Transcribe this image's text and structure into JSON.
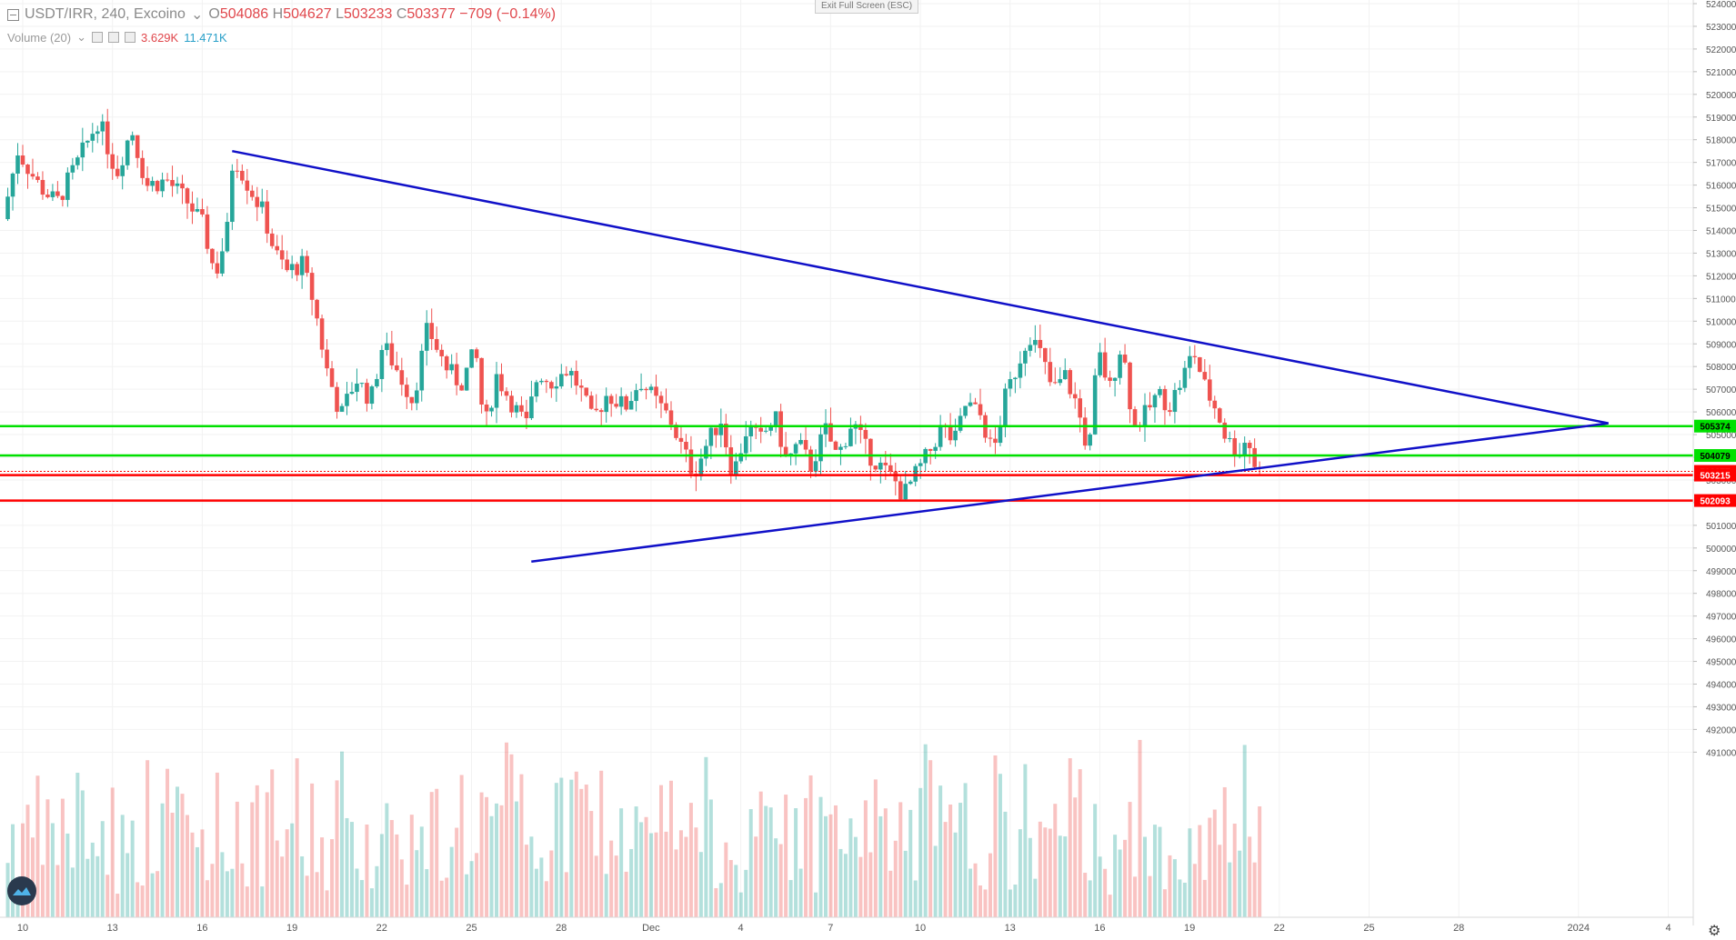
{
  "legend": {
    "symbol": "USDT/IRR, 240, Excoino",
    "open_key": "O",
    "open": "504086",
    "high_key": "H",
    "high": "504627",
    "low_key": "L",
    "low": "503233",
    "close_key": "C",
    "close": "503377",
    "change": "−709 (−0.14%)"
  },
  "volume_legend": {
    "name": "Volume (20)",
    "value1": "3.629K",
    "value2": "11.471K"
  },
  "exit_fullscreen": "Exit Full Screen (ESC)",
  "colors": {
    "up": "#26a69a",
    "down": "#ef5350",
    "trendline": "#1010c8",
    "support": "#00e000",
    "resistance": "#ff0000"
  },
  "chart_data": {
    "type": "candlestick",
    "y_axis": {
      "min": 491000,
      "max": 524000,
      "step": 1000,
      "labels": [
        "491000",
        "492000",
        "493000",
        "494000",
        "495000",
        "496000",
        "497000",
        "498000",
        "499000",
        "500000",
        "501000",
        "502000",
        "503000",
        "504000",
        "505000",
        "506000",
        "507000",
        "508000",
        "509000",
        "510000",
        "511000",
        "512000",
        "513000",
        "514000",
        "515000",
        "516000",
        "517000",
        "518000",
        "519000",
        "520000",
        "521000",
        "522000",
        "523000",
        "524000"
      ]
    },
    "x_axis": {
      "ticks": [
        {
          "label": "10",
          "day": 10
        },
        {
          "label": "13",
          "day": 13
        },
        {
          "label": "16",
          "day": 16
        },
        {
          "label": "19",
          "day": 19
        },
        {
          "label": "22",
          "day": 22
        },
        {
          "label": "25",
          "day": 25
        },
        {
          "label": "28",
          "day": 28
        },
        {
          "label": "Dec",
          "day": 31
        },
        {
          "label": "4",
          "day": 34
        },
        {
          "label": "7",
          "day": 37
        },
        {
          "label": "10",
          "day": 40
        },
        {
          "label": "13",
          "day": 43
        },
        {
          "label": "16",
          "day": 46
        },
        {
          "label": "19",
          "day": 49
        },
        {
          "label": "22",
          "day": 52
        },
        {
          "label": "25",
          "day": 55
        },
        {
          "label": "28",
          "day": 58
        },
        {
          "label": "2024",
          "day": 62
        },
        {
          "label": "4",
          "day": 65
        }
      ]
    },
    "price_levels": [
      {
        "label": "505374",
        "value": 505374,
        "color": "green"
      },
      {
        "label": "504079",
        "value": 504079,
        "color": "green"
      },
      {
        "label": "503377",
        "value": 503377,
        "color": "red"
      },
      {
        "label": "503215",
        "value": 503215,
        "color": "red"
      },
      {
        "label": "502093",
        "value": 502093,
        "color": "red"
      }
    ],
    "trendlines": [
      {
        "from": {
          "day": 17,
          "price": 517500
        },
        "to": {
          "day": 63,
          "price": 505500
        }
      },
      {
        "from": {
          "day": 27,
          "price": 499400
        },
        "to": {
          "day": 63,
          "price": 505500
        }
      }
    ],
    "price_path": [
      {
        "day": 9.5,
        "price": 514500
      },
      {
        "day": 10,
        "price": 517500
      },
      {
        "day": 10.7,
        "price": 516000
      },
      {
        "day": 11.3,
        "price": 515200
      },
      {
        "day": 12,
        "price": 517000
      },
      {
        "day": 12.7,
        "price": 518900
      },
      {
        "day": 13.3,
        "price": 516500
      },
      {
        "day": 13.8,
        "price": 518500
      },
      {
        "day": 14.3,
        "price": 516000
      },
      {
        "day": 15,
        "price": 516200
      },
      {
        "day": 15.7,
        "price": 515200
      },
      {
        "day": 16.2,
        "price": 514200
      },
      {
        "day": 16.6,
        "price": 512000
      },
      {
        "day": 17,
        "price": 514000
      },
      {
        "day": 17.2,
        "price": 517400
      },
      {
        "day": 17.7,
        "price": 516000
      },
      {
        "day": 18.2,
        "price": 514800
      },
      {
        "day": 18.6,
        "price": 513000
      },
      {
        "day": 19,
        "price": 512200
      },
      {
        "day": 19.5,
        "price": 512500
      },
      {
        "day": 19.9,
        "price": 510800
      },
      {
        "day": 20.3,
        "price": 508000
      },
      {
        "day": 20.8,
        "price": 505800
      },
      {
        "day": 21.3,
        "price": 507500
      },
      {
        "day": 21.8,
        "price": 506500
      },
      {
        "day": 22.2,
        "price": 509000
      },
      {
        "day": 22.7,
        "price": 507800
      },
      {
        "day": 23.2,
        "price": 506500
      },
      {
        "day": 23.7,
        "price": 509700
      },
      {
        "day": 24.3,
        "price": 508000
      },
      {
        "day": 24.8,
        "price": 507200
      },
      {
        "day": 25.3,
        "price": 508700
      },
      {
        "day": 25.6,
        "price": 505200
      },
      {
        "day": 26,
        "price": 507600
      },
      {
        "day": 26.6,
        "price": 506200
      },
      {
        "day": 27,
        "price": 505400
      },
      {
        "day": 27.4,
        "price": 507800
      },
      {
        "day": 27.8,
        "price": 507300
      },
      {
        "day": 28.4,
        "price": 507900
      },
      {
        "day": 28.8,
        "price": 507000
      },
      {
        "day": 29.2,
        "price": 505600
      },
      {
        "day": 29.7,
        "price": 506800
      },
      {
        "day": 30.3,
        "price": 506200
      },
      {
        "day": 30.8,
        "price": 507400
      },
      {
        "day": 31.3,
        "price": 506500
      },
      {
        "day": 31.8,
        "price": 505700
      },
      {
        "day": 32.2,
        "price": 504400
      },
      {
        "day": 32.6,
        "price": 503300
      },
      {
        "day": 33,
        "price": 504500
      },
      {
        "day": 33.5,
        "price": 505700
      },
      {
        "day": 33.9,
        "price": 503200
      },
      {
        "day": 34.4,
        "price": 505400
      },
      {
        "day": 34.8,
        "price": 504700
      },
      {
        "day": 35.3,
        "price": 505800
      },
      {
        "day": 35.7,
        "price": 503800
      },
      {
        "day": 36.1,
        "price": 504600
      },
      {
        "day": 36.5,
        "price": 503600
      },
      {
        "day": 37,
        "price": 505200
      },
      {
        "day": 37.4,
        "price": 504000
      },
      {
        "day": 37.9,
        "price": 505600
      },
      {
        "day": 38.4,
        "price": 504200
      },
      {
        "day": 38.9,
        "price": 503500
      },
      {
        "day": 39.3,
        "price": 503000
      },
      {
        "day": 39.6,
        "price": 502300
      },
      {
        "day": 40,
        "price": 503200
      },
      {
        "day": 40.5,
        "price": 504300
      },
      {
        "day": 40.9,
        "price": 505400
      },
      {
        "day": 41.3,
        "price": 504600
      },
      {
        "day": 41.7,
        "price": 506400
      },
      {
        "day": 42.2,
        "price": 505800
      },
      {
        "day": 42.6,
        "price": 504100
      },
      {
        "day": 43,
        "price": 506600
      },
      {
        "day": 43.4,
        "price": 508000
      },
      {
        "day": 43.8,
        "price": 509500
      },
      {
        "day": 44.2,
        "price": 508500
      },
      {
        "day": 44.6,
        "price": 506900
      },
      {
        "day": 45,
        "price": 507600
      },
      {
        "day": 45.4,
        "price": 506300
      },
      {
        "day": 45.8,
        "price": 504100
      },
      {
        "day": 46.1,
        "price": 508700
      },
      {
        "day": 46.5,
        "price": 507000
      },
      {
        "day": 46.9,
        "price": 509100
      },
      {
        "day": 47.3,
        "price": 505300
      },
      {
        "day": 47.7,
        "price": 505900
      },
      {
        "day": 48.1,
        "price": 506800
      },
      {
        "day": 48.5,
        "price": 506300
      },
      {
        "day": 48.9,
        "price": 507400
      },
      {
        "day": 49.3,
        "price": 508700
      },
      {
        "day": 49.7,
        "price": 507000
      },
      {
        "day": 50.1,
        "price": 506000
      },
      {
        "day": 50.4,
        "price": 504800
      },
      {
        "day": 50.8,
        "price": 504200
      },
      {
        "day": 51.1,
        "price": 504900
      },
      {
        "day": 51.4,
        "price": 503400
      }
    ],
    "volume_range": [
      0,
      8300
    ]
  }
}
